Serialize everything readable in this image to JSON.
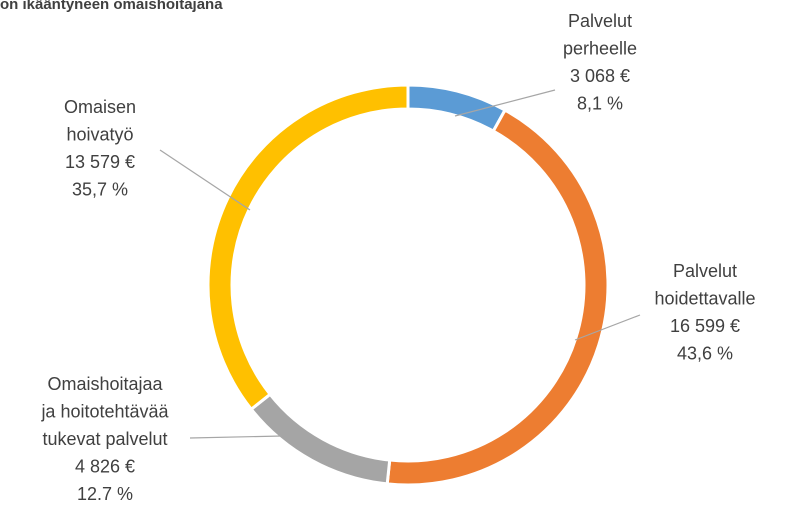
{
  "chart_data": {
    "type": "donut",
    "title": "on ikääntyneen omaishoitajana",
    "categories": [
      [
        "Palvelut",
        "perheelle"
      ],
      [
        "Palvelut",
        "hoidettavalle"
      ],
      [
        "Omaishoitajaa",
        "ja hoitotehtävää",
        "tukevat palvelut"
      ],
      [
        "Omaisen",
        "hoivatyö"
      ]
    ],
    "values": [
      3068,
      16599,
      4826,
      13579
    ],
    "value_labels": [
      "3 068 €",
      "16 599 €",
      "4 826 €",
      "13 579 €"
    ],
    "percent_labels": [
      "8,1 %",
      "43,6 %",
      "12.7 %",
      "35,7 %"
    ],
    "colors": [
      "#5b9bd5",
      "#ed7d31",
      "#a5a5a5",
      "#ffc000"
    ]
  }
}
